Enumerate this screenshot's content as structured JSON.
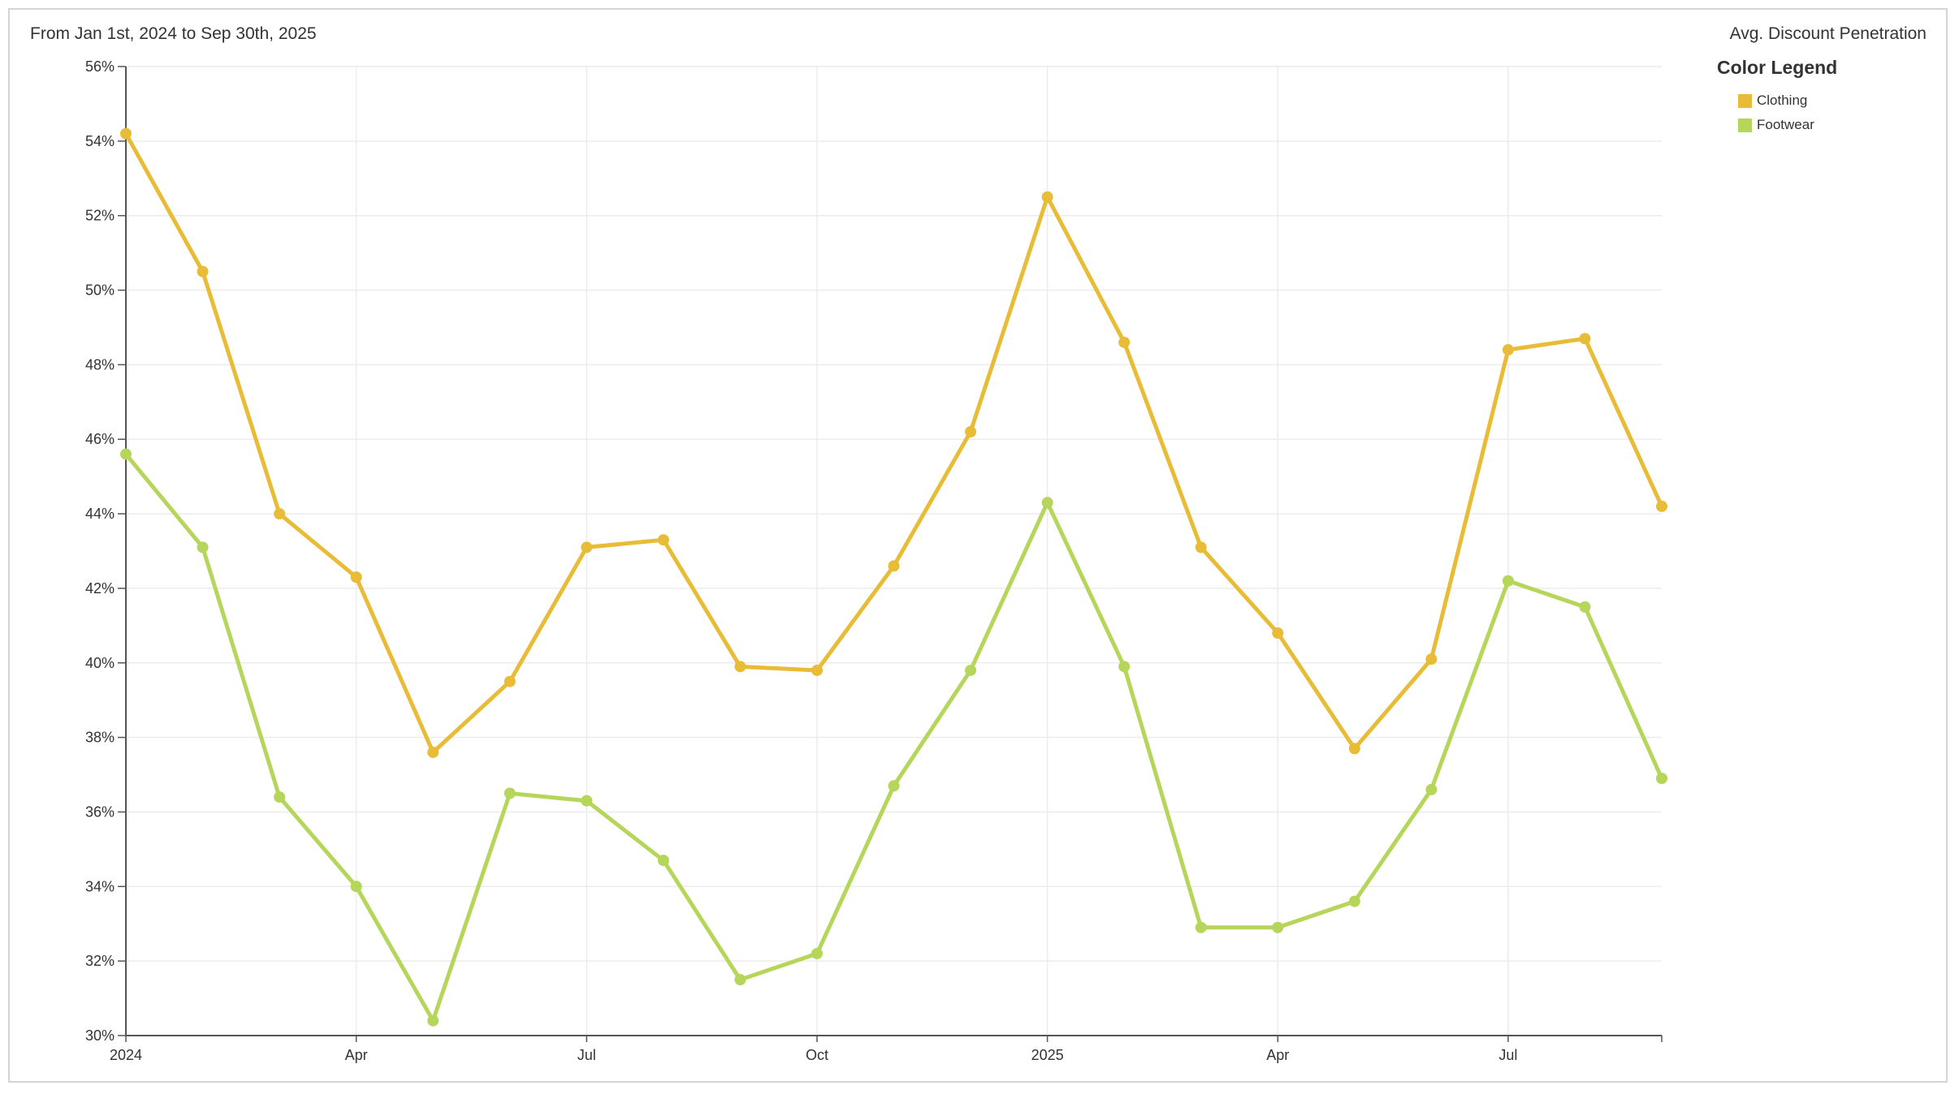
{
  "header": {
    "date_range": "From Jan 1st, 2024 to Sep 30th, 2025",
    "metric": "Avg. Discount Penetration"
  },
  "legend": {
    "title": "Color Legend",
    "placement": "top-right",
    "items": [
      {
        "label": "Clothing",
        "color": "#e8bc37"
      },
      {
        "label": "Footwear",
        "color": "#b5d65a"
      }
    ]
  },
  "chart_data": {
    "type": "line",
    "title": "",
    "xlabel": "",
    "ylabel": "",
    "x": [
      "2024-01",
      "2024-02",
      "2024-03",
      "2024-04",
      "2024-05",
      "2024-06",
      "2024-07",
      "2024-08",
      "2024-09",
      "2024-10",
      "2024-11",
      "2024-12",
      "2025-01",
      "2025-02",
      "2025-03",
      "2025-04",
      "2025-05",
      "2025-06",
      "2025-07",
      "2025-08",
      "2025-09"
    ],
    "series": [
      {
        "name": "Clothing",
        "color": "#e8bc37",
        "values": [
          54.2,
          50.5,
          44.0,
          42.3,
          37.6,
          39.5,
          43.1,
          43.3,
          39.9,
          39.8,
          42.6,
          46.2,
          52.5,
          48.6,
          43.1,
          40.8,
          37.7,
          40.1,
          48.4,
          48.7,
          44.2
        ]
      },
      {
        "name": "Footwear",
        "color": "#b5d65a",
        "values": [
          45.6,
          43.1,
          36.4,
          34.0,
          30.4,
          36.5,
          36.3,
          34.7,
          31.5,
          32.2,
          36.7,
          39.8,
          44.3,
          39.9,
          32.9,
          32.9,
          33.6,
          36.6,
          42.2,
          41.5,
          36.9
        ]
      }
    ],
    "x_ticks": [
      {
        "x": "2024-01",
        "label": "2024"
      },
      {
        "x": "2024-04",
        "label": "Apr"
      },
      {
        "x": "2024-07",
        "label": "Jul"
      },
      {
        "x": "2024-10",
        "label": "Oct"
      },
      {
        "x": "2025-01",
        "label": "2025"
      },
      {
        "x": "2025-04",
        "label": "Apr"
      },
      {
        "x": "2025-07",
        "label": "Jul"
      }
    ],
    "y_ticks": [
      30,
      32,
      34,
      36,
      38,
      40,
      42,
      44,
      46,
      48,
      50,
      52,
      54,
      56
    ],
    "y_tick_suffix": "%",
    "ylim": [
      30,
      56
    ],
    "grid": true
  }
}
